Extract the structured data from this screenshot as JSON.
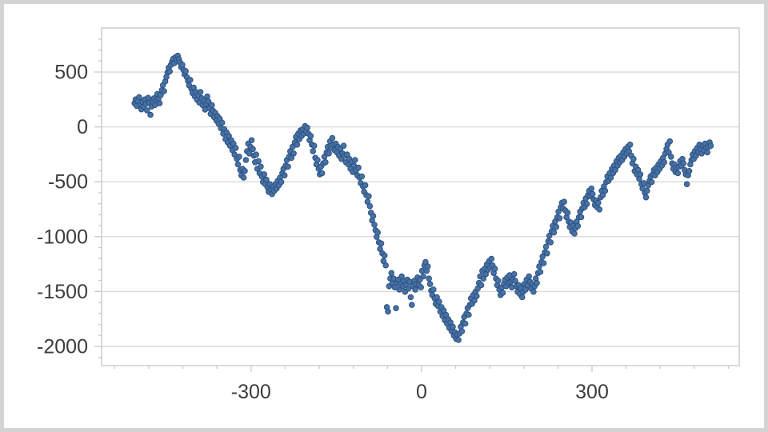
{
  "chart_data": {
    "type": "scatter",
    "title": "",
    "xlabel": "",
    "ylabel": "",
    "legend": "none",
    "grid": "horizontal-only",
    "xlim": [
      -563,
      559
    ],
    "ylim": [
      -2175,
      901
    ],
    "x_ticks_major": [
      -300,
      0,
      300
    ],
    "x_tick_labels": [
      "-300",
      "0",
      "300"
    ],
    "x_minor_step": 60,
    "x_minor_range": [
      -540,
      540
    ],
    "y_ticks_major": [
      500,
      0,
      -500,
      -1000,
      -1500,
      -2000
    ],
    "y_tick_labels": [
      "500",
      "0",
      "-500",
      "-1000",
      "-1500",
      "-2000"
    ],
    "y_minor_step": 100,
    "y_minor_range": [
      -2100,
      800
    ],
    "marker": {
      "fill": "#4672a6",
      "stroke": "#2e5180",
      "radius": 3.3
    },
    "colors": {
      "background": "#ffffff",
      "frame_border": "#d4d4d4",
      "plot_border": "#cdd1d4",
      "gridline": "#d9d9d9",
      "tick": "#c9cdd1",
      "tick_label": "#3d3d3d"
    },
    "series_name": "random-walk",
    "x_start": -505,
    "x_step": 2,
    "y_values": [
      215,
      250,
      190,
      235,
      270,
      205,
      160,
      225,
      185,
      250,
      210,
      150,
      265,
      220,
      110,
      185,
      230,
      260,
      200,
      240,
      300,
      255,
      215,
      290,
      335,
      380,
      325,
      415,
      455,
      495,
      540,
      505,
      565,
      595,
      620,
      580,
      635,
      610,
      648,
      618,
      588,
      545,
      565,
      520,
      478,
      508,
      452,
      418,
      378,
      428,
      348,
      308,
      358,
      278,
      318,
      248,
      288,
      222,
      318,
      262,
      198,
      238,
      158,
      208,
      278,
      232,
      168,
      118,
      198,
      148,
      88,
      128,
      58,
      98,
      28,
      72,
      -12,
      38,
      -62,
      -22,
      -112,
      -52,
      -142,
      -82,
      -172,
      -122,
      -212,
      -152,
      -252,
      -192,
      -292,
      -342,
      -272,
      -392,
      -442,
      -382,
      -462,
      -402,
      -302,
      -222,
      -152,
      -242,
      -182,
      -122,
      -202,
      -262,
      -322,
      -252,
      -382,
      -312,
      -422,
      -362,
      -452,
      -502,
      -432,
      -522,
      -482,
      -552,
      -592,
      -522,
      -572,
      -612,
      -545,
      -582,
      -522,
      -562,
      -492,
      -532,
      -462,
      -502,
      -422,
      -382,
      -442,
      -352,
      -302,
      -362,
      -272,
      -222,
      -282,
      -182,
      -242,
      -142,
      -92,
      -162,
      -62,
      -112,
      -32,
      -82,
      -22,
      -62,
      8,
      -42,
      -8,
      -62,
      -122,
      -82,
      -162,
      -222,
      -172,
      -282,
      -342,
      -302,
      -382,
      -432,
      -362,
      -422,
      -332,
      -272,
      -322,
      -232,
      -182,
      -242,
      -132,
      -192,
      -102,
      -162,
      -212,
      -152,
      -232,
      -182,
      -262,
      -202,
      -292,
      -242,
      -172,
      -262,
      -322,
      -252,
      -342,
      -292,
      -382,
      -322,
      -412,
      -352,
      -302,
      -392,
      -442,
      -372,
      -462,
      -512,
      -452,
      -542,
      -592,
      -532,
      -622,
      -682,
      -632,
      -722,
      -782,
      -852,
      -812,
      -892,
      -942,
      -1002,
      -962,
      -1052,
      -1112,
      -1062,
      -1152,
      -1222,
      -1172,
      -1262,
      -1642,
      -1682,
      -1452,
      -1382,
      -1332,
      -1422,
      -1382,
      -1462,
      -1652,
      -1422,
      -1392,
      -1482,
      -1432,
      -1362,
      -1452,
      -1402,
      -1502,
      -1442,
      -1392,
      -1472,
      -1412,
      -1552,
      -1622,
      -1452,
      -1402,
      -1482,
      -1432,
      -1372,
      -1442,
      -1392,
      -1462,
      -1312,
      -1362,
      -1262,
      -1232,
      -1312,
      -1272,
      -1382,
      -1432,
      -1492,
      -1532,
      -1482,
      -1562,
      -1612,
      -1552,
      -1632,
      -1592,
      -1682,
      -1642,
      -1722,
      -1672,
      -1762,
      -1712,
      -1792,
      -1752,
      -1832,
      -1782,
      -1862,
      -1822,
      -1902,
      -1872,
      -1932,
      -1892,
      -1942,
      -1882,
      -1822,
      -1862,
      -1782,
      -1732,
      -1792,
      -1702,
      -1652,
      -1712,
      -1622,
      -1562,
      -1612,
      -1532,
      -1582,
      -1502,
      -1542,
      -1472,
      -1422,
      -1362,
      -1442,
      -1312,
      -1382,
      -1292,
      -1342,
      -1252,
      -1302,
      -1222,
      -1282,
      -1202,
      -1262,
      -1332,
      -1292,
      -1382,
      -1442,
      -1402,
      -1482,
      -1532,
      -1462,
      -1512,
      -1432,
      -1392,
      -1452,
      -1372,
      -1422,
      -1352,
      -1412,
      -1462,
      -1392,
      -1342,
      -1402,
      -1452,
      -1502,
      -1442,
      -1522,
      -1472,
      -1552,
      -1502,
      -1432,
      -1482,
      -1392,
      -1442,
      -1362,
      -1412,
      -1472,
      -1432,
      -1502,
      -1452,
      -1382,
      -1422,
      -1332,
      -1272,
      -1322,
      -1232,
      -1182,
      -1242,
      -1142,
      -1092,
      -1152,
      -1042,
      -992,
      -1052,
      -952,
      -902,
      -962,
      -862,
      -912,
      -822,
      -772,
      -832,
      -732,
      -692,
      -742,
      -682,
      -762,
      -822,
      -782,
      -862,
      -912,
      -872,
      -952,
      -902,
      -972,
      -922,
      -862,
      -902,
      -822,
      -772,
      -822,
      -742,
      -692,
      -732,
      -652,
      -702,
      -622,
      -582,
      -632,
      -562,
      -612,
      -662,
      -712,
      -672,
      -732,
      -692,
      -752,
      -642,
      -582,
      -622,
      -542,
      -582,
      -502,
      -452,
      -492,
      -422,
      -462,
      -382,
      -422,
      -352,
      -392,
      -312,
      -352,
      -282,
      -322,
      -262,
      -302,
      -232,
      -272,
      -202,
      -242,
      -182,
      -222,
      -162,
      -262,
      -332,
      -292,
      -402,
      -362,
      -432,
      -392,
      -472,
      -432,
      -522,
      -562,
      -512,
      -602,
      -642,
      -582,
      -532,
      -492,
      -452,
      -502,
      -432,
      -392,
      -442,
      -372,
      -412,
      -342,
      -382,
      -312,
      -352,
      -282,
      -322,
      -242,
      -202,
      -162,
      -232,
      -132,
      -272,
      -332,
      -382,
      -342,
      -412,
      -372,
      -422,
      -362,
      -312,
      -352,
      -292,
      -332,
      -392,
      -432,
      -522,
      -442,
      -402,
      -342,
      -302,
      -252,
      -292,
      -222,
      -262,
      -192,
      -232,
      -162,
      -202,
      -242,
      -172,
      -212,
      -152,
      -192,
      -232,
      -182,
      -142,
      -172
    ]
  }
}
